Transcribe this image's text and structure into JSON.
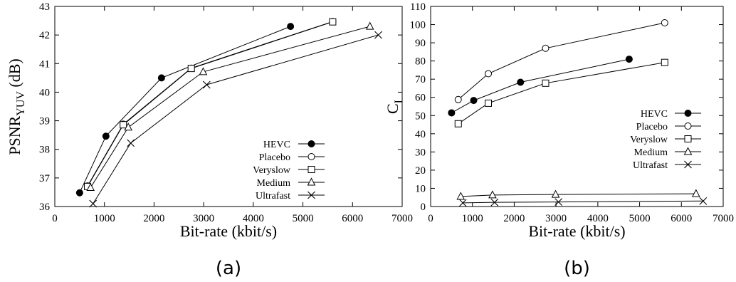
{
  "chart_data": [
    {
      "type": "line",
      "caption": "(a)",
      "xlabel": "Bit-rate (kbit/s)",
      "ylabel_main": "PSNR",
      "ylabel_sub": "YUV",
      "ylabel_unit": "(dB)",
      "xlim": [
        0,
        7000
      ],
      "ylim": [
        36,
        43
      ],
      "xticks": [
        0,
        1000,
        2000,
        3000,
        4000,
        5000,
        6000,
        7000
      ],
      "yticks": [
        36,
        37,
        38,
        39,
        40,
        41,
        42,
        43
      ],
      "grid": false,
      "legend_position": "bottom-right",
      "series": [
        {
          "name": "HEVC",
          "marker": "filled-circle",
          "x": [
            500,
            1030,
            2150,
            4750
          ],
          "y": [
            36.48,
            38.46,
            40.5,
            42.3
          ]
        },
        {
          "name": "Placebo",
          "marker": "circle",
          "x": [
            660,
            1380,
            2750,
            5600
          ],
          "y": [
            36.72,
            38.88,
            40.84,
            42.47
          ]
        },
        {
          "name": "Veryslow",
          "marker": "square",
          "x": [
            660,
            1380,
            2750,
            5600
          ],
          "y": [
            36.7,
            38.86,
            40.83,
            42.46
          ]
        },
        {
          "name": "Medium",
          "marker": "triangle",
          "x": [
            720,
            1480,
            2990,
            6350
          ],
          "y": [
            36.66,
            38.77,
            40.71,
            42.3
          ]
        },
        {
          "name": "Ultrafast",
          "marker": "cross",
          "x": [
            770,
            1530,
            3060,
            6520
          ],
          "y": [
            36.1,
            38.22,
            40.26,
            42.0
          ]
        }
      ]
    },
    {
      "type": "line",
      "caption": "(b)",
      "xlabel": "Bit-rate (kbit/s)",
      "ylabel_main": "C",
      "ylabel_sub": "I",
      "ylabel_unit": "",
      "xlim": [
        0,
        7000
      ],
      "ylim": [
        0,
        110
      ],
      "xticks": [
        0,
        1000,
        2000,
        3000,
        4000,
        5000,
        6000,
        7000
      ],
      "yticks": [
        0,
        10,
        20,
        30,
        40,
        50,
        60,
        70,
        80,
        90,
        100,
        110
      ],
      "grid": false,
      "legend_position": "center-right",
      "series": [
        {
          "name": "HEVC",
          "marker": "filled-circle",
          "x": [
            500,
            1030,
            2150,
            4750
          ],
          "y": [
            51.5,
            58.3,
            68.3,
            81.0
          ]
        },
        {
          "name": "Placebo",
          "marker": "circle",
          "x": [
            660,
            1380,
            2750,
            5600
          ],
          "y": [
            58.8,
            73.0,
            87.0,
            101.0
          ]
        },
        {
          "name": "Veryslow",
          "marker": "square",
          "x": [
            660,
            1380,
            2750,
            5600
          ],
          "y": [
            45.5,
            56.8,
            67.8,
            79.2
          ]
        },
        {
          "name": "Medium",
          "marker": "triangle",
          "x": [
            720,
            1480,
            2990,
            6350
          ],
          "y": [
            5.5,
            6.3,
            6.6,
            7.0
          ]
        },
        {
          "name": "Ultrafast",
          "marker": "cross",
          "x": [
            770,
            1530,
            3060,
            6520
          ],
          "y": [
            2.0,
            2.3,
            2.5,
            3.0
          ]
        }
      ]
    }
  ]
}
